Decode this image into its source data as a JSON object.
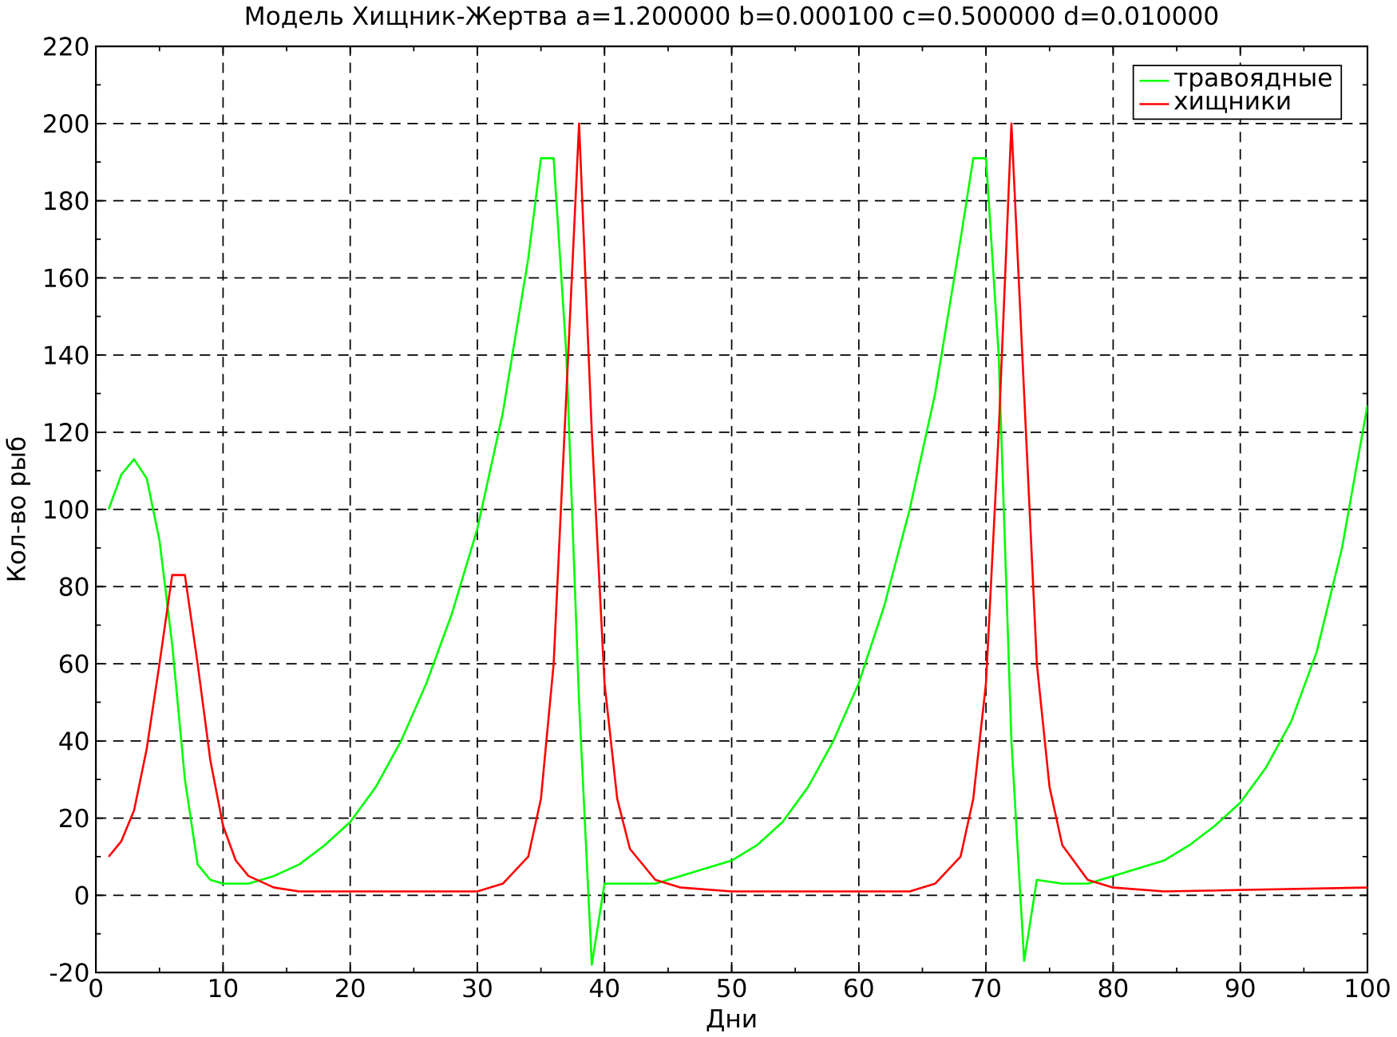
{
  "chart_data": {
    "type": "line",
    "title": "Модель Хищник-Жертва a=1.200000 b=0.000100 c=0.500000 d=0.010000",
    "xlabel": "Дни",
    "ylabel": "Кол-во рыб",
    "xlim": [
      0,
      100
    ],
    "ylim": [
      -20,
      220
    ],
    "xticks": [
      0,
      10,
      20,
      30,
      40,
      50,
      60,
      70,
      80,
      90,
      100
    ],
    "yticks": [
      -20,
      0,
      20,
      40,
      60,
      80,
      100,
      120,
      140,
      160,
      180,
      200,
      220
    ],
    "grid": true,
    "legend": "top right",
    "marker": "none",
    "line_style": "solid",
    "series": [
      {
        "name": "травоядные",
        "color": "#00ff00",
        "x": [
          1,
          2,
          3,
          4,
          5,
          6,
          7,
          8,
          9,
          10,
          12,
          14,
          16,
          18,
          20,
          22,
          24,
          26,
          28,
          30,
          32,
          34,
          35,
          36,
          37,
          38,
          39,
          40,
          42,
          44,
          46,
          48,
          50,
          52,
          54,
          56,
          58,
          60,
          62,
          64,
          66,
          68,
          69,
          70,
          71,
          72,
          73,
          74,
          76,
          78,
          80,
          82,
          84,
          86,
          88,
          90,
          92,
          94,
          96,
          98,
          100
        ],
        "values": [
          100,
          109,
          113,
          108,
          92,
          65,
          30,
          8,
          4,
          3,
          3,
          5,
          8,
          13,
          19,
          28,
          40,
          55,
          73,
          95,
          125,
          165,
          191,
          191,
          140,
          50,
          -18,
          3,
          3,
          3,
          5,
          7,
          9,
          13,
          19,
          28,
          40,
          55,
          75,
          100,
          130,
          170,
          191,
          191,
          140,
          40,
          -17,
          4,
          3,
          3,
          5,
          7,
          9,
          13,
          18,
          24,
          33,
          45,
          63,
          90,
          127
        ]
      },
      {
        "name": "хищники",
        "color": "#ff0000",
        "x": [
          1,
          2,
          3,
          4,
          5,
          6,
          7,
          8,
          9,
          10,
          11,
          12,
          14,
          16,
          20,
          30,
          32,
          34,
          35,
          36,
          37,
          38,
          39,
          40,
          41,
          42,
          44,
          46,
          50,
          64,
          66,
          68,
          69,
          70,
          71,
          72,
          73,
          74,
          75,
          76,
          78,
          80,
          84,
          100
        ],
        "values": [
          10,
          14,
          22,
          38,
          60,
          83,
          83,
          60,
          35,
          18,
          9,
          5,
          2,
          1,
          1,
          1,
          3,
          10,
          25,
          60,
          130,
          200,
          120,
          55,
          25,
          12,
          4,
          2,
          1,
          1,
          3,
          10,
          25,
          55,
          120,
          200,
          130,
          60,
          28,
          13,
          4,
          2,
          1,
          2
        ]
      }
    ]
  }
}
